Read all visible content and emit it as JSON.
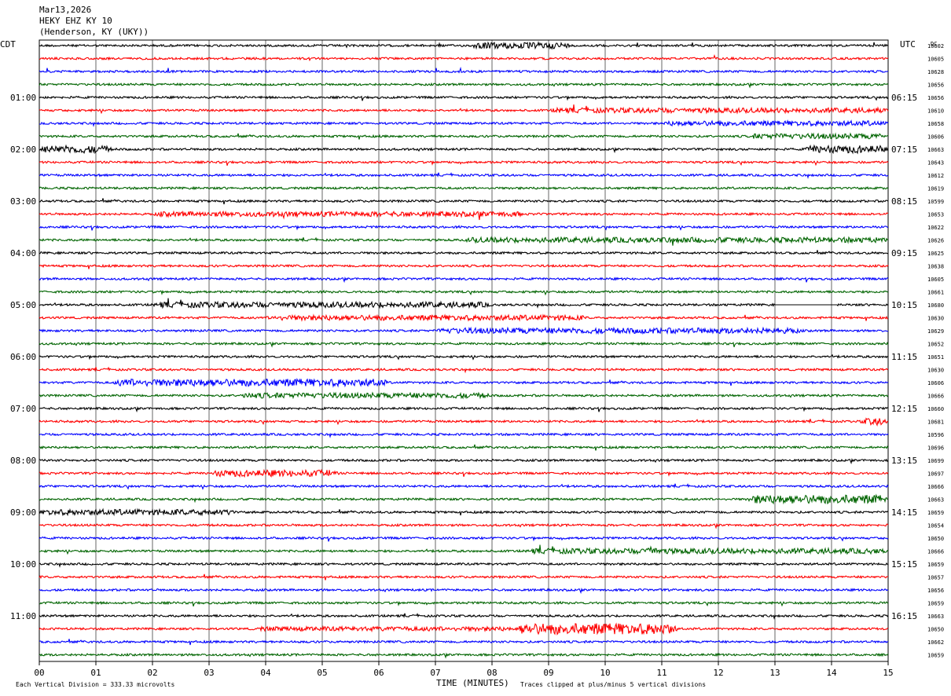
{
  "header": {
    "date": "Mar13,2026",
    "station": "HEKY EHZ KY 10",
    "location": "(Henderson, KY (UKY))"
  },
  "left_axis_title": "CDT",
  "right_axis_title": "UTC",
  "dc_title": "DC",
  "x_axis_title": "TIME (MINUTES)",
  "footer": {
    "scale_note": "Each Vertical Division =  333.33 microvolts",
    "clip_note": "Traces clipped at plus/minus 5 vertical divisions"
  },
  "colors": {
    "trace_cycle": [
      "#000000",
      "#ff0000",
      "#0000ff",
      "#006400"
    ],
    "grid": "#000000"
  },
  "chart_data": {
    "type": "helicorder",
    "title": "HEKY EHZ KY 10",
    "xlabel": "TIME (MINUTES)",
    "xlim": [
      0,
      15
    ],
    "x_ticks": [
      "00",
      "01",
      "02",
      "03",
      "04",
      "05",
      "06",
      "07",
      "08",
      "09",
      "10",
      "11",
      "12",
      "13",
      "14",
      "15"
    ],
    "minutes_per_line": 15,
    "line_count": 48,
    "left_hour_labels": [
      {
        "line": 4,
        "label": "01:00"
      },
      {
        "line": 8,
        "label": "02:00"
      },
      {
        "line": 12,
        "label": "03:00"
      },
      {
        "line": 16,
        "label": "04:00"
      },
      {
        "line": 20,
        "label": "05:00"
      },
      {
        "line": 24,
        "label": "06:00"
      },
      {
        "line": 28,
        "label": "07:00"
      },
      {
        "line": 32,
        "label": "08:00"
      },
      {
        "line": 36,
        "label": "09:00"
      },
      {
        "line": 40,
        "label": "10:00"
      },
      {
        "line": 44,
        "label": "11:00"
      }
    ],
    "right_hour_labels": [
      {
        "line": 4,
        "label": "06:15"
      },
      {
        "line": 8,
        "label": "07:15"
      },
      {
        "line": 12,
        "label": "08:15"
      },
      {
        "line": 16,
        "label": "09:15"
      },
      {
        "line": 20,
        "label": "10:15"
      },
      {
        "line": 24,
        "label": "11:15"
      },
      {
        "line": 28,
        "label": "12:15"
      },
      {
        "line": 32,
        "label": "13:15"
      },
      {
        "line": 36,
        "label": "14:15"
      },
      {
        "line": 40,
        "label": "15:15"
      },
      {
        "line": 44,
        "label": "16:15"
      }
    ],
    "dc_offsets": [
      "10602",
      "10605",
      "10628",
      "10656",
      "10656",
      "10610",
      "10658",
      "10606",
      "10663",
      "10643",
      "10612",
      "10619",
      "10599",
      "10653",
      "10622",
      "10626",
      "10625",
      "10638",
      "10605",
      "10661",
      "10680",
      "10630",
      "10629",
      "10652",
      "10651",
      "10630",
      "10606",
      "10666",
      "10660",
      "10681",
      "10596",
      "10696",
      "10699",
      "10697",
      "10666",
      "10663",
      "10659",
      "10654",
      "10650",
      "10666",
      "10659",
      "10657",
      "10656",
      "10659",
      "10663",
      "10650",
      "10662",
      "10659"
    ],
    "events": [
      {
        "line": 0,
        "start": 7.6,
        "end": 9.4,
        "amp": 1.9
      },
      {
        "line": 5,
        "start": 9.0,
        "end": 15.0,
        "amp": 1.5
      },
      {
        "line": 6,
        "start": 11.0,
        "end": 15.0,
        "amp": 1.5
      },
      {
        "line": 7,
        "start": 12.5,
        "end": 15.0,
        "amp": 1.6
      },
      {
        "line": 8,
        "start": 0.0,
        "end": 1.3,
        "amp": 2.3
      },
      {
        "line": 8,
        "start": 13.5,
        "end": 15.0,
        "amp": 2.3
      },
      {
        "line": 13,
        "start": 2.0,
        "end": 8.6,
        "amp": 1.5
      },
      {
        "line": 15,
        "start": 7.5,
        "end": 15.0,
        "amp": 1.6
      },
      {
        "line": 20,
        "start": 2.0,
        "end": 8.0,
        "amp": 1.7
      },
      {
        "line": 21,
        "start": 4.0,
        "end": 9.7,
        "amp": 1.6
      },
      {
        "line": 22,
        "start": 7.0,
        "end": 13.5,
        "amp": 1.7
      },
      {
        "line": 26,
        "start": 1.3,
        "end": 6.2,
        "amp": 2.2
      },
      {
        "line": 27,
        "start": 3.5,
        "end": 8.0,
        "amp": 1.6
      },
      {
        "line": 29,
        "start": 14.5,
        "end": 15.0,
        "amp": 2.3
      },
      {
        "line": 33,
        "start": 3.0,
        "end": 5.3,
        "amp": 2.0
      },
      {
        "line": 35,
        "start": 12.5,
        "end": 15.0,
        "amp": 2.6
      },
      {
        "line": 36,
        "start": 0.0,
        "end": 3.5,
        "amp": 1.7
      },
      {
        "line": 39,
        "start": 8.6,
        "end": 15.0,
        "amp": 1.6
      },
      {
        "line": 39,
        "start": 10.6,
        "end": 11.0,
        "amp": 3.2
      },
      {
        "line": 45,
        "start": 8.4,
        "end": 11.3,
        "amp": 3.3
      },
      {
        "line": 45,
        "start": 3.8,
        "end": 8.4,
        "amp": 1.3
      }
    ],
    "flat_segments": [
      {
        "line": 20,
        "start": 13.0,
        "end": 14.1
      }
    ],
    "note_clipping": "Traces clipped at plus/minus 5 vertical divisions"
  }
}
